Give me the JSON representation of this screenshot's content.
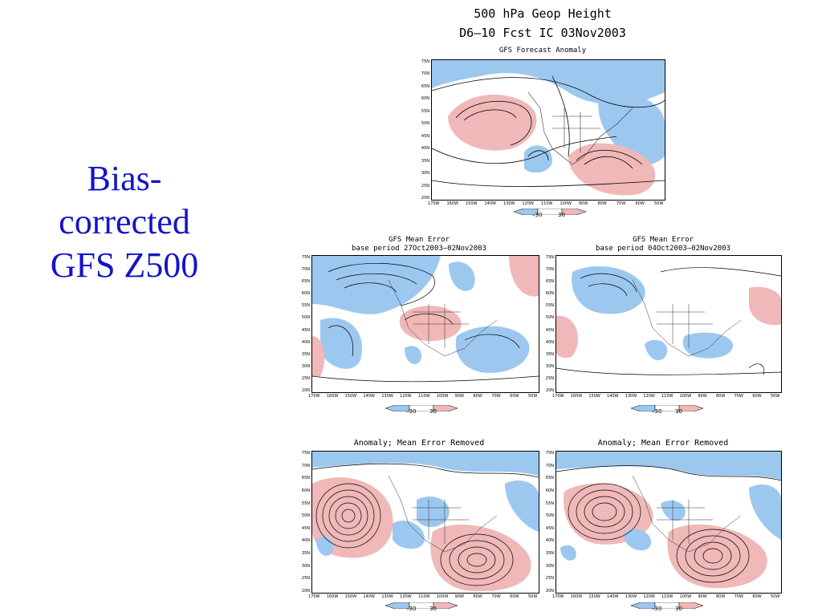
{
  "slide": {
    "title_lines": [
      "Bias-",
      "corrected",
      "GFS Z500"
    ]
  },
  "main_panel": {
    "title_line1": "500  hPa  Geop  Height",
    "title_line2": "D6–10  Fcst  IC  03Nov2003",
    "subtitle": "GFS Forecast Anomaly"
  },
  "panels": [
    {
      "title": "GFS Mean Error",
      "subtitle": "base period 27Oct2003–02Nov2003"
    },
    {
      "title": "GFS Mean Error",
      "subtitle": "base period 04Oct2003–02Nov2003"
    },
    {
      "title": "Anomaly; Mean Error Removed",
      "subtitle": ""
    },
    {
      "title": "Anomaly; Mean Error Removed",
      "subtitle": ""
    }
  ],
  "lat_labels": [
    "75N",
    "70N",
    "65N",
    "60N",
    "55N",
    "50N",
    "45N",
    "40N",
    "35N",
    "30N",
    "25N",
    "20N"
  ],
  "lon_labels": [
    "170W",
    "160W",
    "150W",
    "140W",
    "130W",
    "120W",
    "110W",
    "100W",
    "90W",
    "80W",
    "70W",
    "60W",
    "50W"
  ],
  "colorbar": {
    "low_label": "–30",
    "high_label": "30"
  },
  "colors": {
    "title_blue": "#1414c8",
    "negative_fill": "#9cc8f0",
    "positive_fill": "#f0b8b8",
    "contour": "#000000"
  }
}
